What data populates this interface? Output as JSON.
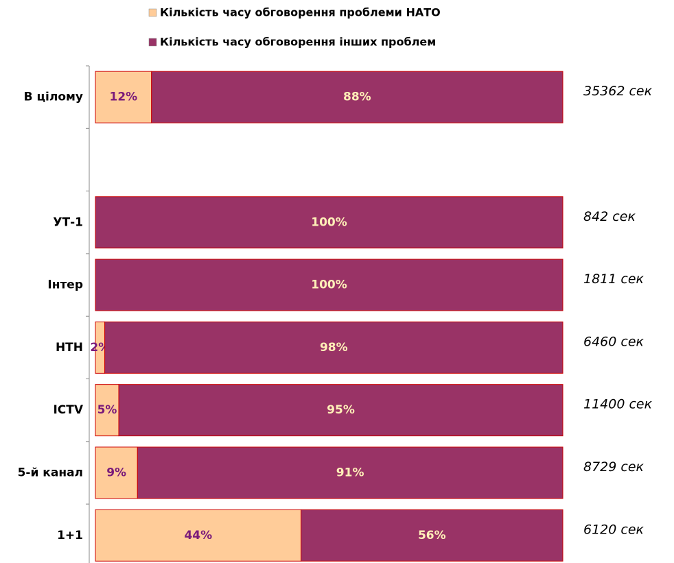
{
  "chart_data": {
    "type": "bar",
    "orientation": "horizontal",
    "stacked": true,
    "categories": [
      "В цілому",
      null,
      "УТ-1",
      "Інтер",
      "НТН",
      "ICTV",
      "5-й канал",
      "1+1"
    ],
    "series": [
      {
        "name": "Кількість часу обговорення проблеми НАТО",
        "color": "#ffcc99",
        "label_color": "#7a1a7a",
        "values": [
          12,
          null,
          0,
          0,
          2,
          5,
          9,
          44
        ],
        "value_labels": [
          "12%",
          null,
          null,
          null,
          "2%",
          "5%",
          "9%",
          "44%"
        ]
      },
      {
        "name": "Кількість часу обговорення інших проблем",
        "color": "#993366",
        "label_color": "#ffefb8",
        "values": [
          88,
          null,
          100,
          100,
          98,
          95,
          91,
          56
        ],
        "value_labels": [
          "88%",
          null,
          "100%",
          "100%",
          "98%",
          "95%",
          "91%",
          "56%"
        ]
      }
    ],
    "annotations": [
      "35362 сек",
      null,
      "842 сек",
      "1811 сек",
      "6460 сек",
      "11400 сек",
      "8729 сек",
      "6120 сек"
    ],
    "xlim": [
      0,
      100
    ],
    "legend": "top"
  }
}
